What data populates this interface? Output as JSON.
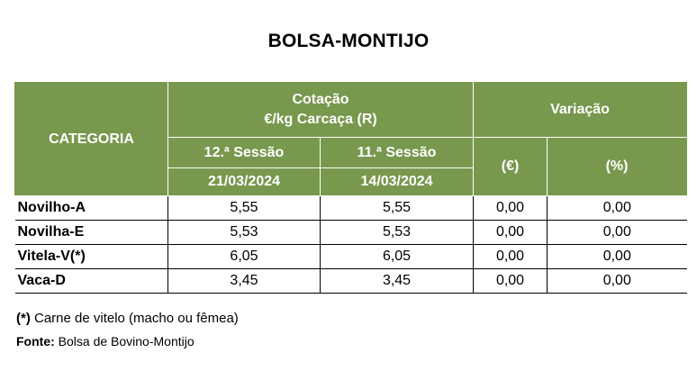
{
  "title": "BOLSA-MONTIJO",
  "table": {
    "header": {
      "category": "CATEGORIA",
      "price_line1": "Cotação",
      "price_line2": "€/kg Carcaça (R)",
      "variation": "Variação",
      "session_current": "12.ª Sessão",
      "session_previous": "11.ª Sessão",
      "date_current": "21/03/2024",
      "date_previous": "14/03/2024",
      "var_eur": "(€)",
      "var_pct": "(%)"
    },
    "rows": [
      {
        "category": "Novilho-A",
        "current": "5,55",
        "previous": "5,55",
        "var_eur": "0,00",
        "var_pct": "0,00"
      },
      {
        "category": "Novilha-E",
        "current": "5,53",
        "previous": "5,53",
        "var_eur": "0,00",
        "var_pct": "0,00"
      },
      {
        "category": "Vitela-V(*)",
        "current": "6,05",
        "previous": "6,05",
        "var_eur": "0,00",
        "var_pct": "0,00"
      },
      {
        "category": "Vaca-D",
        "current": "3,45",
        "previous": "3,45",
        "var_eur": "0,00",
        "var_pct": "0,00"
      }
    ]
  },
  "footnote": {
    "marker": "(*)",
    "text": " Carne de vitelo (macho ou fêmea)"
  },
  "source": {
    "label": "Fonte:",
    "text": " Bolsa de Bovino-Montijo"
  }
}
